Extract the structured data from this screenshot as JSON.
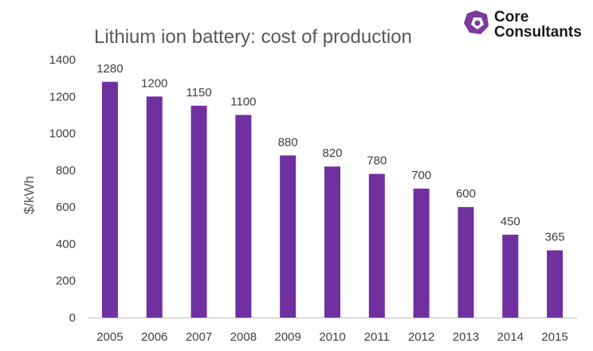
{
  "brand": {
    "line1": "Core",
    "line2": "Consultants",
    "accent_color": "#7b3a9e",
    "icon": "core-consultants-logo-icon"
  },
  "chart_data": {
    "type": "bar",
    "title": "Lithium ion battery: cost of production",
    "xlabel": "",
    "ylabel": "$/kWh",
    "categories": [
      "2005",
      "2006",
      "2007",
      "2008",
      "2009",
      "2010",
      "2011",
      "2012",
      "2013",
      "2014",
      "2015"
    ],
    "values": [
      1280,
      1200,
      1150,
      1100,
      880,
      820,
      780,
      700,
      600,
      450,
      365
    ],
    "ylim": [
      0,
      1400
    ],
    "yticks": [
      0,
      200,
      400,
      600,
      800,
      1000,
      1200,
      1400
    ],
    "grid": false,
    "legend": "none",
    "bar_color": "#7030a0"
  }
}
